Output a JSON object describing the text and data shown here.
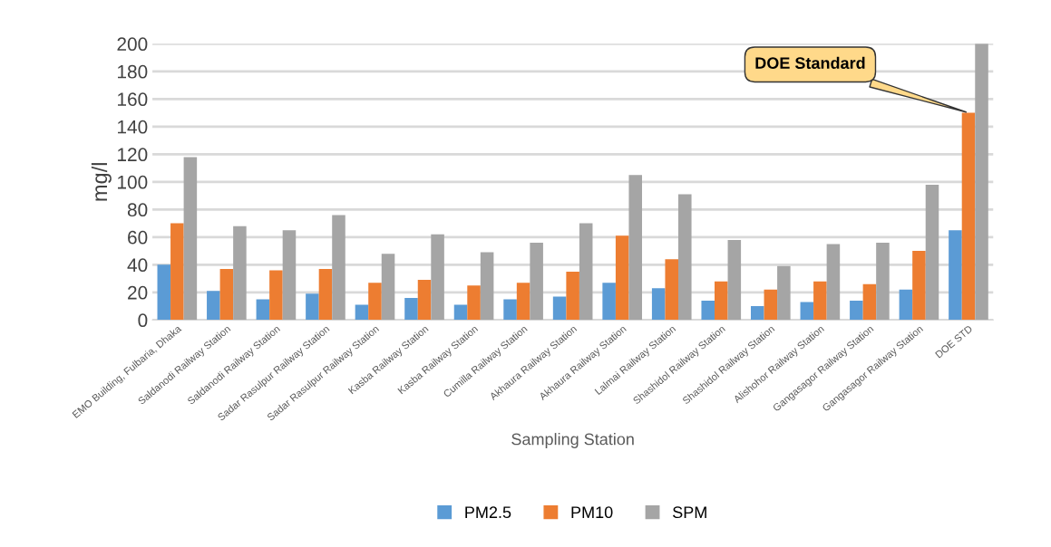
{
  "chart_data": {
    "type": "bar",
    "xlabel": "Sampling Station",
    "ylabel": "mg/l",
    "categories": [
      "EMO Building, Fulbaria, Dhaka",
      "Saldanodi Railway Station",
      "Saldanodi Railway Station",
      "Sadar Rasulpur Railway Station",
      "Sadar Rasulpur Railway Station",
      "Kasba Railway Station",
      "Kasba Railway Station",
      "Cumilla Railway Station",
      "Akhaura Railway Station",
      "Akhaura Railway Station",
      "Lalmai Railway Station",
      "Shashidol Railway Station",
      "Shashidol Railway Station",
      "Alishohor Railway Station",
      "Gangasagor Railway Station",
      "Gangasagor Railway Station",
      "DOE STD"
    ],
    "series": [
      {
        "name": "PM2.5",
        "color": "#5b9bd5",
        "values": [
          40,
          21,
          15,
          19,
          11,
          16,
          11,
          15,
          17,
          27,
          23,
          14,
          10,
          13,
          14,
          22,
          65
        ]
      },
      {
        "name": "PM10",
        "color": "#ed7d31",
        "values": [
          70,
          37,
          36,
          37,
          27,
          29,
          25,
          27,
          35,
          61,
          44,
          28,
          22,
          28,
          26,
          50,
          150
        ]
      },
      {
        "name": "SPM",
        "color": "#a5a5a5",
        "values": [
          118,
          68,
          65,
          76,
          48,
          62,
          49,
          56,
          70,
          105,
          91,
          58,
          39,
          55,
          56,
          98,
          200
        ]
      }
    ],
    "ylim": [
      0,
      200
    ],
    "yticks": [
      0,
      20,
      40,
      60,
      80,
      100,
      120,
      140,
      160,
      180,
      200
    ],
    "grid": "y",
    "legend": "bottom",
    "annotations": [
      {
        "text": "DOE Standard",
        "x": "DOE STD",
        "y": 150
      }
    ]
  }
}
